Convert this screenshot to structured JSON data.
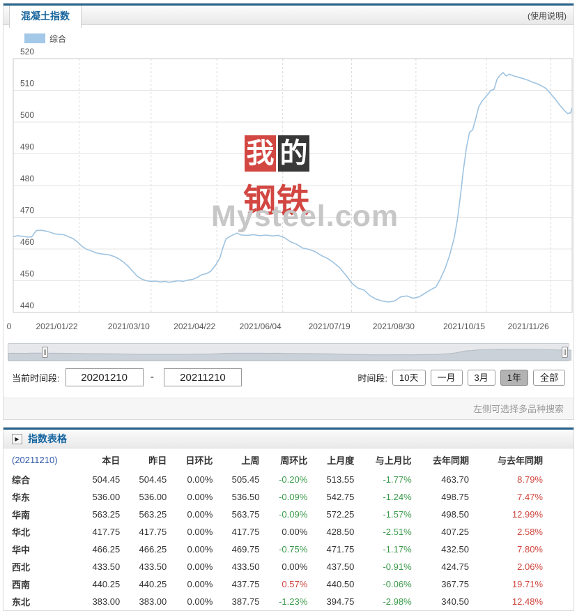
{
  "header": {
    "tab": "混凝土指数",
    "help": "(使用说明)"
  },
  "legend": {
    "label": "综合",
    "swatch_color": "#a3c8e8"
  },
  "chart_data": {
    "type": "line",
    "title": "",
    "xlabel": "",
    "ylabel": "",
    "ylim": [
      440,
      520
    ],
    "yticks": [
      520,
      510,
      500,
      490,
      480,
      470,
      460,
      450,
      440
    ],
    "grid": true,
    "legend_position": "top-left",
    "xticks": [
      {
        "label": "0",
        "date": "2020/12/10"
      },
      {
        "label": "2021/01/22",
        "date": "2021/01/22"
      },
      {
        "label": "2021/03/10",
        "date": "2021/03/10"
      },
      {
        "label": "2021/04/22",
        "date": "2021/04/22"
      },
      {
        "label": "2021/06/04",
        "date": "2021/06/04"
      },
      {
        "label": "2021/07/19",
        "date": "2021/07/19"
      },
      {
        "label": "2021/08/30",
        "date": "2021/08/30"
      },
      {
        "label": "2021/10/15",
        "date": "2021/10/15"
      },
      {
        "label": "2021/11/26",
        "date": "2021/11/26"
      }
    ],
    "series": [
      {
        "name": "综合",
        "color": "#9fc3e0",
        "points": [
          [
            "2020/12/10",
            463.9
          ],
          [
            "2020/12/13",
            464.2
          ],
          [
            "2020/12/16",
            464.0
          ],
          [
            "2020/12/19",
            463.8
          ],
          [
            "2020/12/22",
            463.8
          ],
          [
            "2020/12/25",
            465.8
          ],
          [
            "2020/12/28",
            465.9
          ],
          [
            "2020/12/31",
            465.7
          ],
          [
            "2021/01/03",
            465.3
          ],
          [
            "2021/01/06",
            464.8
          ],
          [
            "2021/01/09",
            464.6
          ],
          [
            "2021/01/12",
            464.5
          ],
          [
            "2021/01/15",
            463.9
          ],
          [
            "2021/01/18",
            463.3
          ],
          [
            "2021/01/21",
            462.2
          ],
          [
            "2021/01/24",
            460.8
          ],
          [
            "2021/01/27",
            459.9
          ],
          [
            "2021/01/30",
            459.4
          ],
          [
            "2021/02/02",
            458.8
          ],
          [
            "2021/02/05",
            458.5
          ],
          [
            "2021/02/08",
            458.3
          ],
          [
            "2021/02/11",
            458.1
          ],
          [
            "2021/02/14",
            457.6
          ],
          [
            "2021/02/17",
            456.9
          ],
          [
            "2021/02/20",
            455.9
          ],
          [
            "2021/02/23",
            454.6
          ],
          [
            "2021/02/26",
            453.0
          ],
          [
            "2021/03/01",
            451.4
          ],
          [
            "2021/03/04",
            450.5
          ],
          [
            "2021/03/07",
            450.0
          ],
          [
            "2021/03/10",
            449.8
          ],
          [
            "2021/03/13",
            449.9
          ],
          [
            "2021/03/16",
            449.6
          ],
          [
            "2021/03/19",
            449.8
          ],
          [
            "2021/03/22",
            449.5
          ],
          [
            "2021/03/25",
            449.8
          ],
          [
            "2021/03/28",
            450.0
          ],
          [
            "2021/03/31",
            449.8
          ],
          [
            "2021/04/03",
            450.2
          ],
          [
            "2021/04/06",
            450.4
          ],
          [
            "2021/04/09",
            451.0
          ],
          [
            "2021/04/12",
            451.9
          ],
          [
            "2021/04/15",
            452.2
          ],
          [
            "2021/04/18",
            453.0
          ],
          [
            "2021/04/21",
            454.8
          ],
          [
            "2021/04/24",
            457.2
          ],
          [
            "2021/04/26",
            460.5
          ],
          [
            "2021/04/28",
            463.2
          ],
          [
            "2021/05/01",
            464.1
          ],
          [
            "2021/05/05",
            465.0
          ],
          [
            "2021/05/08",
            464.4
          ],
          [
            "2021/05/12",
            464.3
          ],
          [
            "2021/05/16",
            464.5
          ],
          [
            "2021/05/20",
            464.2
          ],
          [
            "2021/05/24",
            464.4
          ],
          [
            "2021/05/28",
            464.1
          ],
          [
            "2021/06/01",
            464.3
          ],
          [
            "2021/06/05",
            463.6
          ],
          [
            "2021/06/09",
            462.3
          ],
          [
            "2021/06/13",
            461.5
          ],
          [
            "2021/06/17",
            460.3
          ],
          [
            "2021/06/21",
            459.9
          ],
          [
            "2021/06/25",
            459.2
          ],
          [
            "2021/06/29",
            458.0
          ],
          [
            "2021/07/03",
            457.1
          ],
          [
            "2021/07/07",
            455.8
          ],
          [
            "2021/07/11",
            454.2
          ],
          [
            "2021/07/15",
            451.9
          ],
          [
            "2021/07/19",
            449.3
          ],
          [
            "2021/07/23",
            447.7
          ],
          [
            "2021/07/27",
            447.1
          ],
          [
            "2021/07/31",
            445.3
          ],
          [
            "2021/08/04",
            444.2
          ],
          [
            "2021/08/08",
            443.6
          ],
          [
            "2021/08/12",
            443.3
          ],
          [
            "2021/08/16",
            443.6
          ],
          [
            "2021/08/20",
            444.9
          ],
          [
            "2021/08/24",
            445.2
          ],
          [
            "2021/08/28",
            444.5
          ],
          [
            "2021/09/01",
            444.9
          ],
          [
            "2021/09/05",
            446.1
          ],
          [
            "2021/09/09",
            447.3
          ],
          [
            "2021/09/12",
            448.0
          ],
          [
            "2021/09/15",
            450.6
          ],
          [
            "2021/09/18",
            453.8
          ],
          [
            "2021/09/21",
            458.0
          ],
          [
            "2021/09/24",
            463.5
          ],
          [
            "2021/09/26",
            469.0
          ],
          [
            "2021/09/28",
            476.5
          ],
          [
            "2021/09/30",
            485.0
          ],
          [
            "2021/10/02",
            492.0
          ],
          [
            "2021/10/04",
            496.8
          ],
          [
            "2021/10/06",
            497.5
          ],
          [
            "2021/10/08",
            501.0
          ],
          [
            "2021/10/10",
            504.8
          ],
          [
            "2021/10/12",
            506.5
          ],
          [
            "2021/10/14",
            507.6
          ],
          [
            "2021/10/16",
            508.8
          ],
          [
            "2021/10/18",
            510.0
          ],
          [
            "2021/10/20",
            510.3
          ],
          [
            "2021/10/22",
            513.5
          ],
          [
            "2021/10/24",
            514.8
          ],
          [
            "2021/10/26",
            515.6
          ],
          [
            "2021/10/28",
            514.5
          ],
          [
            "2021/10/30",
            515.1
          ],
          [
            "2021/11/02",
            514.5
          ],
          [
            "2021/11/05",
            514.1
          ],
          [
            "2021/11/08",
            513.7
          ],
          [
            "2021/11/11",
            513.2
          ],
          [
            "2021/11/14",
            512.6
          ],
          [
            "2021/11/17",
            512.1
          ],
          [
            "2021/11/20",
            511.4
          ],
          [
            "2021/11/23",
            510.6
          ],
          [
            "2021/11/26",
            508.9
          ],
          [
            "2021/11/29",
            507.2
          ],
          [
            "2021/12/02",
            505.3
          ],
          [
            "2021/12/05",
            503.6
          ],
          [
            "2021/12/07",
            502.7
          ],
          [
            "2021/12/09",
            502.9
          ],
          [
            "2021/12/10",
            504.45
          ]
        ]
      }
    ],
    "watermark": {
      "block1": "我",
      "block2": "的",
      "line2": "钢铁",
      "brand": "Mysteel.com"
    }
  },
  "controls": {
    "period_label": "当前时间段:",
    "from": "20201210",
    "separator": "-",
    "to": "20211210",
    "range_label": "时间段:",
    "buttons": [
      "10天",
      "一月",
      "3月",
      "1年",
      "全部"
    ],
    "active_button": "1年"
  },
  "footer_hint": "左侧可选择多品种搜索",
  "table": {
    "title": "指数表格",
    "date_header": "(20211210)",
    "columns": [
      "本日",
      "昨日",
      "日环比",
      "上周",
      "周环比",
      "上月度",
      "与上月比",
      "去年同期",
      "与去年同期"
    ],
    "rows": [
      {
        "name": "综合",
        "values": [
          "504.45",
          "504.45",
          "0.00%",
          "505.45",
          "-0.20%",
          "513.55",
          "-1.77%",
          "463.70",
          "8.79%"
        ]
      },
      {
        "name": "华东",
        "values": [
          "536.00",
          "536.00",
          "0.00%",
          "536.50",
          "-0.09%",
          "542.75",
          "-1.24%",
          "498.75",
          "7.47%"
        ]
      },
      {
        "name": "华南",
        "values": [
          "563.25",
          "563.25",
          "0.00%",
          "563.75",
          "-0.09%",
          "572.25",
          "-1.57%",
          "498.50",
          "12.99%"
        ]
      },
      {
        "name": "华北",
        "values": [
          "417.75",
          "417.75",
          "0.00%",
          "417.75",
          "0.00%",
          "428.50",
          "-2.51%",
          "407.25",
          "2.58%"
        ]
      },
      {
        "name": "华中",
        "values": [
          "466.25",
          "466.25",
          "0.00%",
          "469.75",
          "-0.75%",
          "471.75",
          "-1.17%",
          "432.50",
          "7.80%"
        ]
      },
      {
        "name": "西北",
        "values": [
          "433.50",
          "433.50",
          "0.00%",
          "433.50",
          "0.00%",
          "437.50",
          "-0.91%",
          "424.75",
          "2.06%"
        ]
      },
      {
        "name": "西南",
        "values": [
          "440.25",
          "440.25",
          "0.00%",
          "437.75",
          "0.57%",
          "440.50",
          "-0.06%",
          "367.75",
          "19.71%"
        ]
      },
      {
        "name": "东北",
        "values": [
          "383.00",
          "383.00",
          "0.00%",
          "387.75",
          "-1.23%",
          "394.75",
          "-2.98%",
          "340.50",
          "12.48%"
        ]
      }
    ]
  },
  "colors": {
    "accent": "#28648e",
    "tab_text": "#17649c",
    "up_red": "#d0463f",
    "down_green": "#399949",
    "date_blue": "#3059a8",
    "line_blue": "#9fc3e0"
  }
}
